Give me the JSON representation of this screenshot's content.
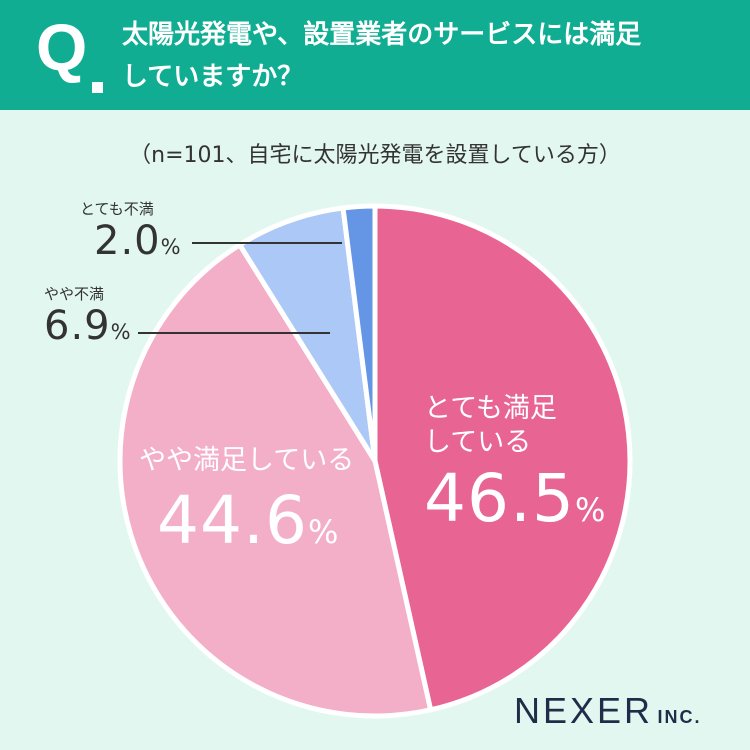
{
  "header": {
    "q_letter": "Q",
    "question_line1": "太陽光発電や、設置業者のサービスには満足",
    "question_line2": "していますか？"
  },
  "note": "（n=101、自宅に太陽光発電を設置している方）",
  "chart_data": {
    "type": "pie",
    "title": "太陽光発電や、設置業者のサービスには満足していますか？",
    "subtitle": "（n=101、自宅に太陽光発電を設置している方）",
    "unit": "%",
    "slices": [
      {
        "label_line1": "とても満足",
        "label_line2": "している",
        "value": 46.5,
        "display": "46.5",
        "color": "#e86593"
      },
      {
        "label_line1": "やや満足している",
        "label_line2": "",
        "value": 44.6,
        "display": "44.6",
        "color": "#f4afc8"
      },
      {
        "label_line1": "やや不満",
        "label_line2": "",
        "value": 6.9,
        "display": "6.9",
        "color": "#acc8f6"
      },
      {
        "label_line1": "とても不満",
        "label_line2": "",
        "value": 2.0,
        "display": "2.0",
        "color": "#6596e6"
      }
    ],
    "leader_line_color": "#333333",
    "separator_color": "#ffffff"
  },
  "logo": {
    "main": "NEXER",
    "sub": "INC."
  }
}
